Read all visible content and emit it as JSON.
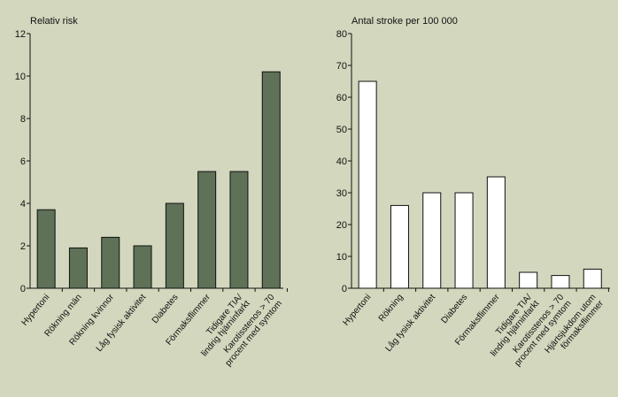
{
  "chart_data": [
    {
      "type": "bar",
      "ylabel": "Relativ risk",
      "ylim": [
        0,
        12
      ],
      "yticks": [
        0,
        2,
        4,
        6,
        8,
        10,
        12
      ],
      "bar_color": "#5f7157",
      "categories": [
        [
          "Hypertoni"
        ],
        [
          "Rökning män"
        ],
        [
          "Rökning kvinnor"
        ],
        [
          "Låg fysisk aktivitet"
        ],
        [
          "Diabetes"
        ],
        [
          "Förmaksflimmer"
        ],
        [
          "Tidigare TIA/",
          "lindrig hjärninfarkt"
        ],
        [
          "Karotisstenos > 70",
          "procent med symtom"
        ]
      ],
      "values": [
        3.7,
        1.9,
        2.4,
        2.0,
        4.0,
        5.5,
        5.5,
        10.2
      ]
    },
    {
      "type": "bar",
      "ylabel": "Antal stroke per 100 000",
      "ylim": [
        0,
        80
      ],
      "yticks": [
        0,
        10,
        20,
        30,
        40,
        50,
        60,
        70,
        80
      ],
      "bar_color": "#ffffff",
      "categories": [
        [
          "Hypertoni"
        ],
        [
          "Rökning"
        ],
        [
          "Låg fysisk aktivitet"
        ],
        [
          "Diabetes"
        ],
        [
          "Förmaksflimmer"
        ],
        [
          "Tidigare TIA/",
          "lindrig hjärninfarkt"
        ],
        [
          "Karotisstenos > 70",
          "procent med symtom"
        ],
        [
          "Hjärtsjukdom utom",
          "förmaksflimmer"
        ]
      ],
      "values": [
        65,
        26,
        30,
        30,
        35,
        5,
        4,
        6
      ]
    }
  ]
}
